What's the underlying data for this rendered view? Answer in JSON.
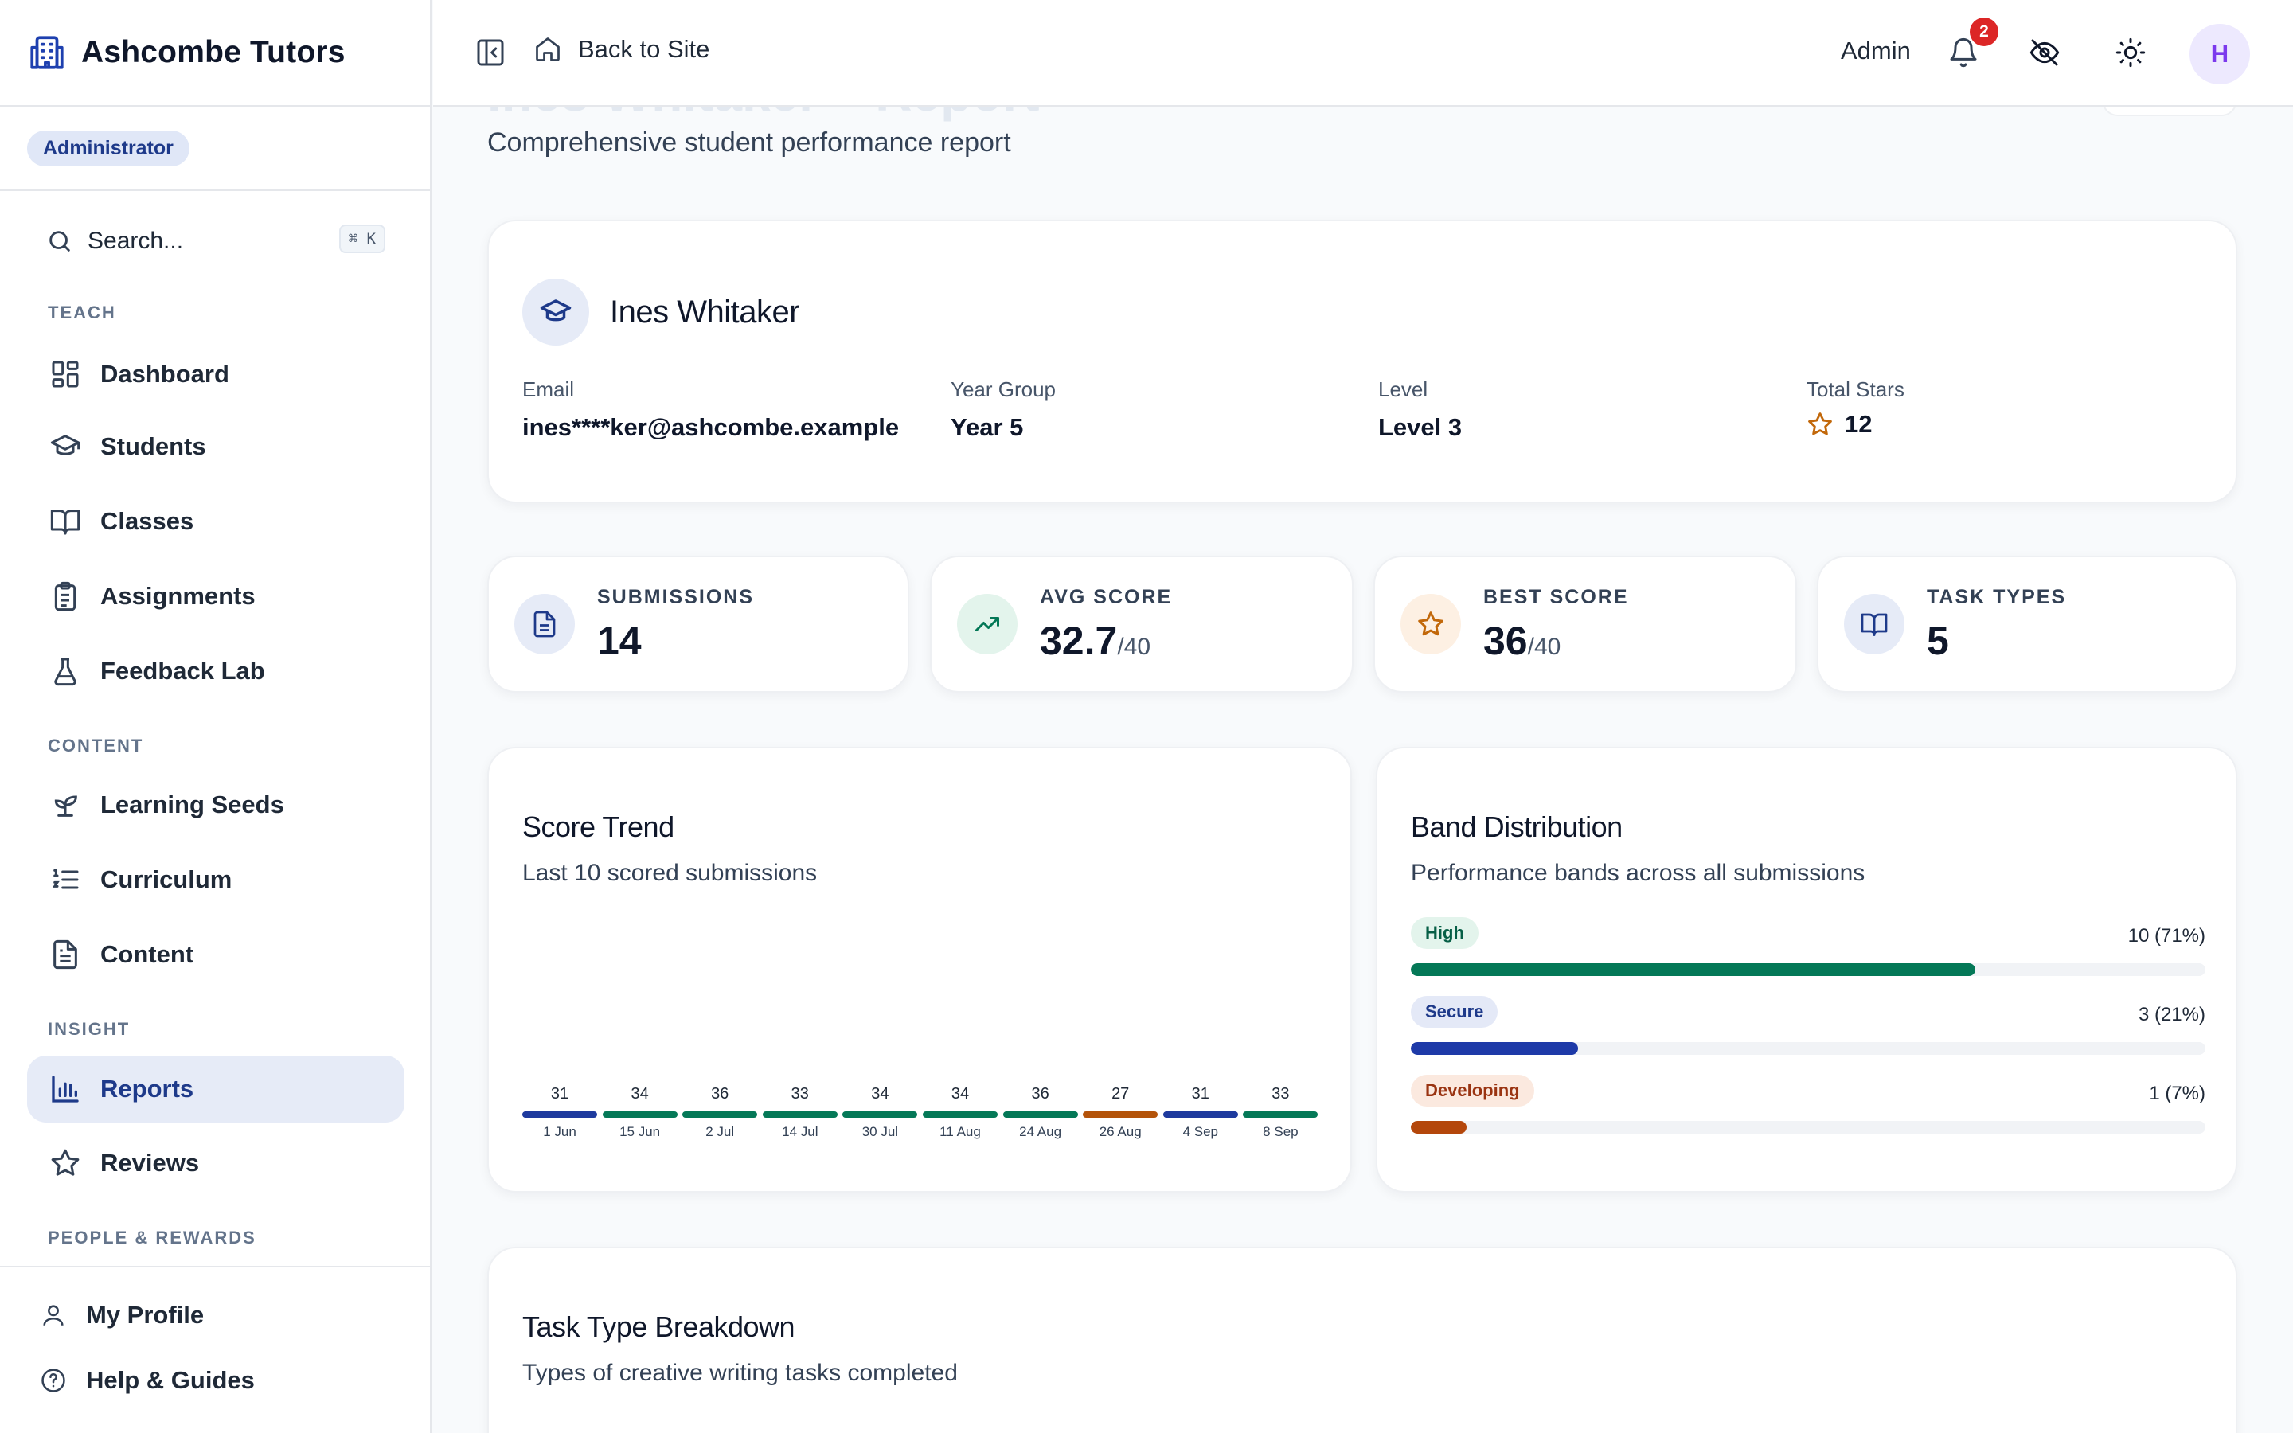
{
  "sidebar": {
    "brand": "Ashcombe Tutors",
    "role": "Administrator",
    "search_label": "Search...",
    "search_shortcut": "⌘ K",
    "sections": {
      "teach": "TEACH",
      "content": "CONTENT",
      "insight": "INSIGHT",
      "people": "PEOPLE & REWARDS"
    },
    "items": {
      "dashboard": "Dashboard",
      "students": "Students",
      "classes": "Classes",
      "assignments": "Assignments",
      "feedback_lab": "Feedback Lab",
      "learning_seeds": "Learning Seeds",
      "curriculum": "Curriculum",
      "content": "Content",
      "reports": "Reports",
      "reviews": "Reviews"
    },
    "footer": {
      "profile": "My Profile",
      "help": "Help & Guides"
    },
    "active_item": "Reports"
  },
  "topbar": {
    "back_label": "Back to Site",
    "admin_label": "Admin",
    "notification_count": "2",
    "avatar_initial": "H"
  },
  "page": {
    "title": "Ines Whitaker – Report",
    "subtitle": "Comprehensive student performance report"
  },
  "student": {
    "name": "Ines Whitaker",
    "fields": {
      "email_label": "Email",
      "email": "ines****ker@ashcombe.example",
      "year_label": "Year Group",
      "year": "Year 5",
      "level_label": "Level",
      "level": "Level 3",
      "stars_label": "Total Stars",
      "stars": "12"
    }
  },
  "stats": {
    "submissions": {
      "label": "SUBMISSIONS",
      "value": "14"
    },
    "avg_score": {
      "label": "AVG SCORE",
      "value": "32.7",
      "suffix": "/40"
    },
    "best_score": {
      "label": "BEST SCORE",
      "value": "36",
      "suffix": "/40"
    },
    "task_types": {
      "label": "TASK TYPES",
      "value": "5"
    }
  },
  "score_trend": {
    "title": "Score Trend",
    "subtitle": "Last 10 scored submissions",
    "points": [
      {
        "score": "31",
        "date": "1 Jun",
        "color": "#1e3a9e"
      },
      {
        "score": "34",
        "date": "15 Jun",
        "color": "#047857"
      },
      {
        "score": "36",
        "date": "2 Jul",
        "color": "#047857"
      },
      {
        "score": "33",
        "date": "14 Jul",
        "color": "#047857"
      },
      {
        "score": "34",
        "date": "30 Jul",
        "color": "#047857"
      },
      {
        "score": "34",
        "date": "11 Aug",
        "color": "#047857"
      },
      {
        "score": "36",
        "date": "24 Aug",
        "color": "#047857"
      },
      {
        "score": "27",
        "date": "26 Aug",
        "color": "#b45309"
      },
      {
        "score": "31",
        "date": "4 Sep",
        "color": "#1e3a9e"
      },
      {
        "score": "33",
        "date": "8 Sep",
        "color": "#047857"
      }
    ]
  },
  "band_distribution": {
    "title": "Band Distribution",
    "subtitle": "Performance bands across all submissions",
    "bands": [
      {
        "name": "High",
        "count": "10 (71%)",
        "fraction": 0.71,
        "color": "#047857",
        "tag_bg": "#e3f4ec",
        "tag_fg": "#065f46"
      },
      {
        "name": "Secure",
        "count": "3 (21%)",
        "fraction": 0.21,
        "color": "#1e3aa8",
        "tag_bg": "#e4e9f7",
        "tag_fg": "#1e3a8a"
      },
      {
        "name": "Developing",
        "count": "1 (7%)",
        "fraction": 0.07,
        "color": "#b4470b",
        "tag_bg": "#fbe9df",
        "tag_fg": "#9a3412"
      }
    ]
  },
  "task_breakdown": {
    "title": "Task Type Breakdown",
    "subtitle": "Types of creative writing tasks completed"
  },
  "colors": {
    "accent": "#1e3a8a",
    "active_nav_bg": "#e6ebf7",
    "notification": "#dc2626",
    "avatar_fg": "#7c3aed"
  }
}
